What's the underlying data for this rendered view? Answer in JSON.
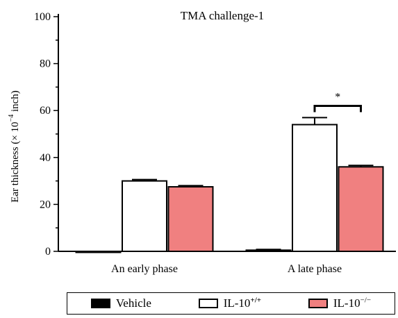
{
  "chart_data": {
    "type": "bar",
    "title": "TMA challenge-1",
    "xlabel": "",
    "ylabel_main": "Ear thickness (",
    "ylabel_times": "×",
    "ylabel_base": " 10",
    "ylabel_exp": "−4",
    "ylabel_unit": " inch)",
    "ylim": [
      0,
      100
    ],
    "yticks": [
      "0",
      "20",
      "40",
      "60",
      "80",
      "100"
    ],
    "categories": [
      "An early phase",
      "A late phase"
    ],
    "series": [
      {
        "name": "Vehicle",
        "values": [
          0,
          0.5
        ],
        "errors": [
          0,
          0.3
        ],
        "color": "#000000"
      },
      {
        "name": "IL-10+/+",
        "values": [
          30,
          54
        ],
        "errors": [
          0.6,
          3.0
        ],
        "color": "#ffffff"
      },
      {
        "name": "IL-10−/−",
        "values": [
          27.5,
          36
        ],
        "errors": [
          0.5,
          0.6
        ],
        "color": "#f08080"
      }
    ],
    "annotation": "*",
    "grid": false,
    "legend_position": "bottom"
  },
  "legend": {
    "vehicle": "Vehicle",
    "il10_wt_base": "IL-10",
    "il10_wt_sup": "+/+",
    "il10_ko_base": "IL-10",
    "il10_ko_sup": "−/−"
  }
}
